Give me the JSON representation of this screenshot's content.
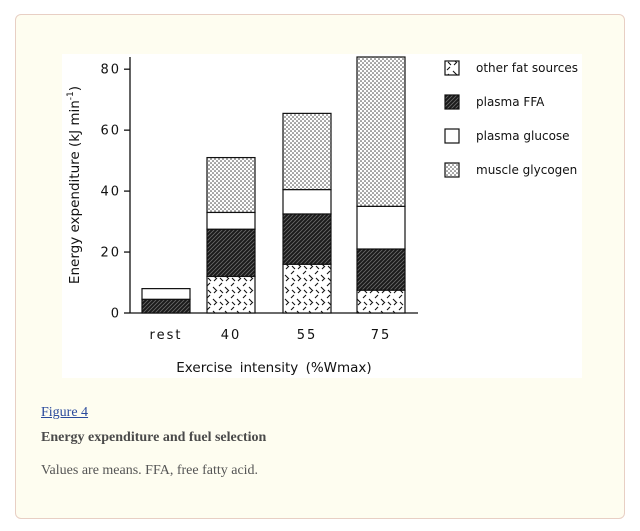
{
  "figure": {
    "link_text": "Figure 4",
    "title": "Energy expenditure and fuel selection",
    "caption": "Values are means. FFA, free fatty acid."
  },
  "chart_data": {
    "type": "bar",
    "stacked": true,
    "categories": [
      "rest",
      "40",
      "55",
      "75"
    ],
    "xlabel": "Exercise intensity (%Wmax)",
    "ylabel": "Energy expenditure (kJ min",
    "ylabel_sup": "-1",
    "ylabel_close": ")",
    "ylim": [
      0,
      84
    ],
    "yticks": [
      0,
      20,
      40,
      60,
      80
    ],
    "grid": false,
    "legend_position": "right",
    "series": [
      {
        "name": "other fat sources",
        "pattern": "dashes",
        "values": [
          0,
          12,
          16,
          7.5
        ]
      },
      {
        "name": "plasma FFA",
        "pattern": "hatch",
        "values": [
          4.5,
          15.5,
          16.5,
          13.5
        ]
      },
      {
        "name": "plasma glucose",
        "pattern": "white",
        "values": [
          3.5,
          5.5,
          8,
          14
        ]
      },
      {
        "name": "muscle glycogen",
        "pattern": "dots",
        "values": [
          0,
          18,
          25,
          49
        ]
      }
    ]
  }
}
